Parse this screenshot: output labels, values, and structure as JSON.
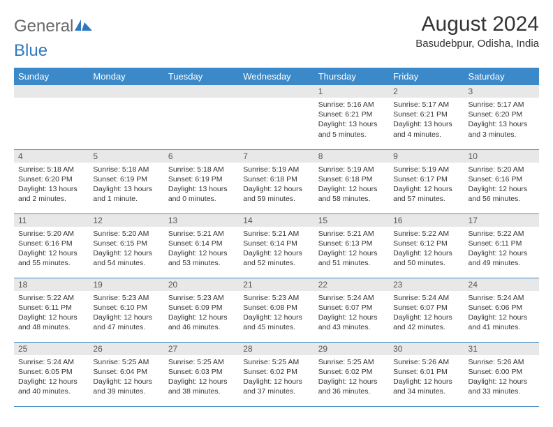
{
  "brand": {
    "general": "General",
    "blue": "Blue"
  },
  "title": "August 2024",
  "location": "Basudebpur, Odisha, India",
  "colors": {
    "header_bg": "#3b89c9",
    "header_text": "#ffffff",
    "daynum_bg": "#e8e8e8",
    "border": "#3b89c9",
    "logo_gray": "#666666",
    "logo_blue": "#2f78bf"
  },
  "day_headers": [
    "Sunday",
    "Monday",
    "Tuesday",
    "Wednesday",
    "Thursday",
    "Friday",
    "Saturday"
  ],
  "weeks": [
    [
      null,
      null,
      null,
      null,
      {
        "n": "1",
        "sunrise": "5:16 AM",
        "sunset": "6:21 PM",
        "daylight": "13 hours and 5 minutes."
      },
      {
        "n": "2",
        "sunrise": "5:17 AM",
        "sunset": "6:21 PM",
        "daylight": "13 hours and 4 minutes."
      },
      {
        "n": "3",
        "sunrise": "5:17 AM",
        "sunset": "6:20 PM",
        "daylight": "13 hours and 3 minutes."
      }
    ],
    [
      {
        "n": "4",
        "sunrise": "5:18 AM",
        "sunset": "6:20 PM",
        "daylight": "13 hours and 2 minutes."
      },
      {
        "n": "5",
        "sunrise": "5:18 AM",
        "sunset": "6:19 PM",
        "daylight": "13 hours and 1 minute."
      },
      {
        "n": "6",
        "sunrise": "5:18 AM",
        "sunset": "6:19 PM",
        "daylight": "13 hours and 0 minutes."
      },
      {
        "n": "7",
        "sunrise": "5:19 AM",
        "sunset": "6:18 PM",
        "daylight": "12 hours and 59 minutes."
      },
      {
        "n": "8",
        "sunrise": "5:19 AM",
        "sunset": "6:18 PM",
        "daylight": "12 hours and 58 minutes."
      },
      {
        "n": "9",
        "sunrise": "5:19 AM",
        "sunset": "6:17 PM",
        "daylight": "12 hours and 57 minutes."
      },
      {
        "n": "10",
        "sunrise": "5:20 AM",
        "sunset": "6:16 PM",
        "daylight": "12 hours and 56 minutes."
      }
    ],
    [
      {
        "n": "11",
        "sunrise": "5:20 AM",
        "sunset": "6:16 PM",
        "daylight": "12 hours and 55 minutes."
      },
      {
        "n": "12",
        "sunrise": "5:20 AM",
        "sunset": "6:15 PM",
        "daylight": "12 hours and 54 minutes."
      },
      {
        "n": "13",
        "sunrise": "5:21 AM",
        "sunset": "6:14 PM",
        "daylight": "12 hours and 53 minutes."
      },
      {
        "n": "14",
        "sunrise": "5:21 AM",
        "sunset": "6:14 PM",
        "daylight": "12 hours and 52 minutes."
      },
      {
        "n": "15",
        "sunrise": "5:21 AM",
        "sunset": "6:13 PM",
        "daylight": "12 hours and 51 minutes."
      },
      {
        "n": "16",
        "sunrise": "5:22 AM",
        "sunset": "6:12 PM",
        "daylight": "12 hours and 50 minutes."
      },
      {
        "n": "17",
        "sunrise": "5:22 AM",
        "sunset": "6:11 PM",
        "daylight": "12 hours and 49 minutes."
      }
    ],
    [
      {
        "n": "18",
        "sunrise": "5:22 AM",
        "sunset": "6:11 PM",
        "daylight": "12 hours and 48 minutes."
      },
      {
        "n": "19",
        "sunrise": "5:23 AM",
        "sunset": "6:10 PM",
        "daylight": "12 hours and 47 minutes."
      },
      {
        "n": "20",
        "sunrise": "5:23 AM",
        "sunset": "6:09 PM",
        "daylight": "12 hours and 46 minutes."
      },
      {
        "n": "21",
        "sunrise": "5:23 AM",
        "sunset": "6:08 PM",
        "daylight": "12 hours and 45 minutes."
      },
      {
        "n": "22",
        "sunrise": "5:24 AM",
        "sunset": "6:07 PM",
        "daylight": "12 hours and 43 minutes."
      },
      {
        "n": "23",
        "sunrise": "5:24 AM",
        "sunset": "6:07 PM",
        "daylight": "12 hours and 42 minutes."
      },
      {
        "n": "24",
        "sunrise": "5:24 AM",
        "sunset": "6:06 PM",
        "daylight": "12 hours and 41 minutes."
      }
    ],
    [
      {
        "n": "25",
        "sunrise": "5:24 AM",
        "sunset": "6:05 PM",
        "daylight": "12 hours and 40 minutes."
      },
      {
        "n": "26",
        "sunrise": "5:25 AM",
        "sunset": "6:04 PM",
        "daylight": "12 hours and 39 minutes."
      },
      {
        "n": "27",
        "sunrise": "5:25 AM",
        "sunset": "6:03 PM",
        "daylight": "12 hours and 38 minutes."
      },
      {
        "n": "28",
        "sunrise": "5:25 AM",
        "sunset": "6:02 PM",
        "daylight": "12 hours and 37 minutes."
      },
      {
        "n": "29",
        "sunrise": "5:25 AM",
        "sunset": "6:02 PM",
        "daylight": "12 hours and 36 minutes."
      },
      {
        "n": "30",
        "sunrise": "5:26 AM",
        "sunset": "6:01 PM",
        "daylight": "12 hours and 34 minutes."
      },
      {
        "n": "31",
        "sunrise": "5:26 AM",
        "sunset": "6:00 PM",
        "daylight": "12 hours and 33 minutes."
      }
    ]
  ]
}
